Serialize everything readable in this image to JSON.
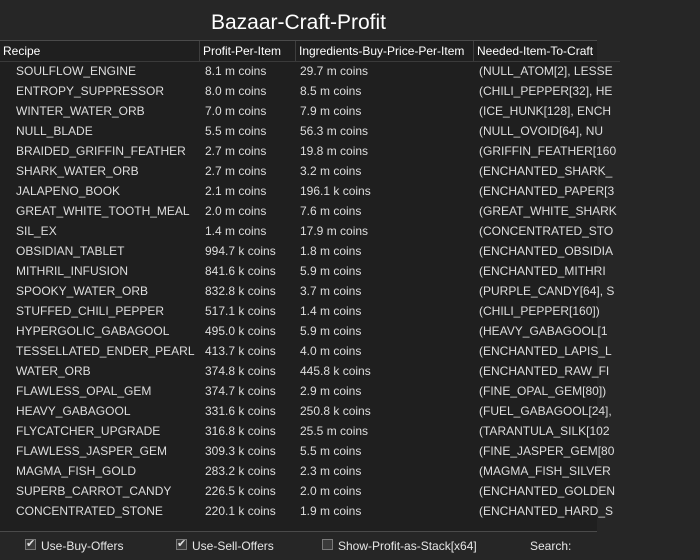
{
  "window": {
    "title": "Bazaar-Craft-Profit"
  },
  "table": {
    "columns": [
      "Recipe",
      "Profit-Per-Item",
      "Ingredients-Buy-Price-Per-Item",
      "Needed-Item-To-Craft"
    ],
    "rows": [
      [
        "SOULFLOW_ENGINE",
        "8.1 m coins",
        "29.7 m coins",
        "(NULL_ATOM[2], LESSE"
      ],
      [
        "ENTROPY_SUPPRESSOR",
        "8.0 m coins",
        "8.5 m coins",
        "(CHILI_PEPPER[32], HE"
      ],
      [
        "WINTER_WATER_ORB",
        "7.0 m coins",
        "7.9 m coins",
        "(ICE_HUNK[128], ENCH"
      ],
      [
        "NULL_BLADE",
        "5.5 m coins",
        "56.3 m coins",
        "(NULL_OVOID[64], NU"
      ],
      [
        "BRAIDED_GRIFFIN_FEATHER",
        "2.7 m coins",
        "19.8 m coins",
        "(GRIFFIN_FEATHER[160"
      ],
      [
        "SHARK_WATER_ORB",
        "2.7 m coins",
        "3.2 m coins",
        "(ENCHANTED_SHARK_"
      ],
      [
        "JALAPENO_BOOK",
        "2.1 m coins",
        "196.1 k coins",
        "(ENCHANTED_PAPER[3"
      ],
      [
        "GREAT_WHITE_TOOTH_MEAL",
        "2.0 m coins",
        "7.6 m coins",
        "(GREAT_WHITE_SHARK"
      ],
      [
        "SIL_EX",
        "1.4 m coins",
        "17.9 m coins",
        "(CONCENTRATED_STO"
      ],
      [
        "OBSIDIAN_TABLET",
        "994.7 k coins",
        "1.8 m coins",
        "(ENCHANTED_OBSIDIA"
      ],
      [
        "MITHRIL_INFUSION",
        "841.6 k coins",
        "5.9 m coins",
        "(ENCHANTED_MITHRI"
      ],
      [
        "SPOOKY_WATER_ORB",
        "832.8 k coins",
        "3.7 m coins",
        "(PURPLE_CANDY[64], S"
      ],
      [
        "STUFFED_CHILI_PEPPER",
        "517.1 k coins",
        "1.4 m coins",
        "(CHILI_PEPPER[160])"
      ],
      [
        "HYPERGOLIC_GABAGOOL",
        "495.0 k coins",
        "5.9 m coins",
        "(HEAVY_GABAGOOL[1"
      ],
      [
        "TESSELLATED_ENDER_PEARL",
        "413.7 k coins",
        "4.0 m coins",
        "(ENCHANTED_LAPIS_L"
      ],
      [
        "WATER_ORB",
        "374.8 k coins",
        "445.8 k coins",
        "(ENCHANTED_RAW_FI"
      ],
      [
        "FLAWLESS_OPAL_GEM",
        "374.7 k coins",
        "2.9 m coins",
        "(FINE_OPAL_GEM[80])"
      ],
      [
        "HEAVY_GABAGOOL",
        "331.6 k coins",
        "250.8 k coins",
        "(FUEL_GABAGOOL[24],"
      ],
      [
        "FLYCATCHER_UPGRADE",
        "316.8 k coins",
        "25.5 m coins",
        "(TARANTULA_SILK[102"
      ],
      [
        "FLAWLESS_JASPER_GEM",
        "309.3 k coins",
        "5.5 m coins",
        "(FINE_JASPER_GEM[80"
      ],
      [
        "MAGMA_FISH_GOLD",
        "283.2 k coins",
        "2.3 m coins",
        "(MAGMA_FISH_SILVER"
      ],
      [
        "SUPERB_CARROT_CANDY",
        "226.5 k coins",
        "2.0 m coins",
        "(ENCHANTED_GOLDEN"
      ],
      [
        "CONCENTRATED_STONE",
        "220.1 k coins",
        "1.9 m coins",
        "(ENCHANTED_HARD_S"
      ]
    ]
  },
  "options": {
    "use_buy_offers": {
      "label": "Use-Buy-Offers",
      "checked": true
    },
    "use_sell_offers": {
      "label": "Use-Sell-Offers",
      "checked": true
    },
    "profit_as_stack": {
      "label": "Show-Profit-as-Stack[x64]",
      "checked": false
    },
    "search_label": "Search:"
  }
}
